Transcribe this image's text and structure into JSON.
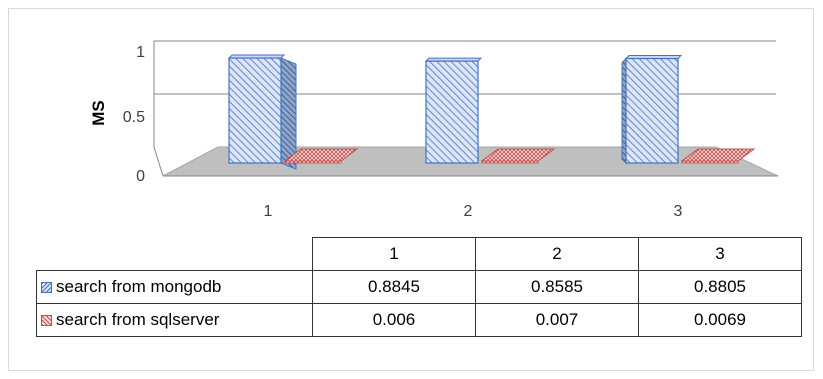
{
  "chart_data": {
    "type": "bar",
    "categories": [
      "1",
      "2",
      "3"
    ],
    "series": [
      {
        "name": "search from mongodb",
        "values": [
          0.8845,
          0.8585,
          0.8805
        ],
        "value_labels": [
          "0.8845",
          "0.8585",
          "0.8805"
        ]
      },
      {
        "name": "search from sqlserver",
        "values": [
          0.006,
          0.007,
          0.0069
        ],
        "value_labels": [
          "0.006",
          "0.007",
          "0.0069"
        ]
      }
    ],
    "title": "",
    "xlabel": "",
    "ylabel": "MS",
    "ylim": [
      0,
      1
    ],
    "yticks": [
      "0",
      "0.5",
      "1"
    ],
    "grid": true,
    "three_d": true,
    "legend": "data table below chart",
    "colors": {
      "series_a": "#4472c4",
      "series_a_fill": "#dbe5f5",
      "series_b": "#c0504d",
      "series_b_fill": "#f7dddd",
      "floor": "#bfbfbf"
    }
  }
}
